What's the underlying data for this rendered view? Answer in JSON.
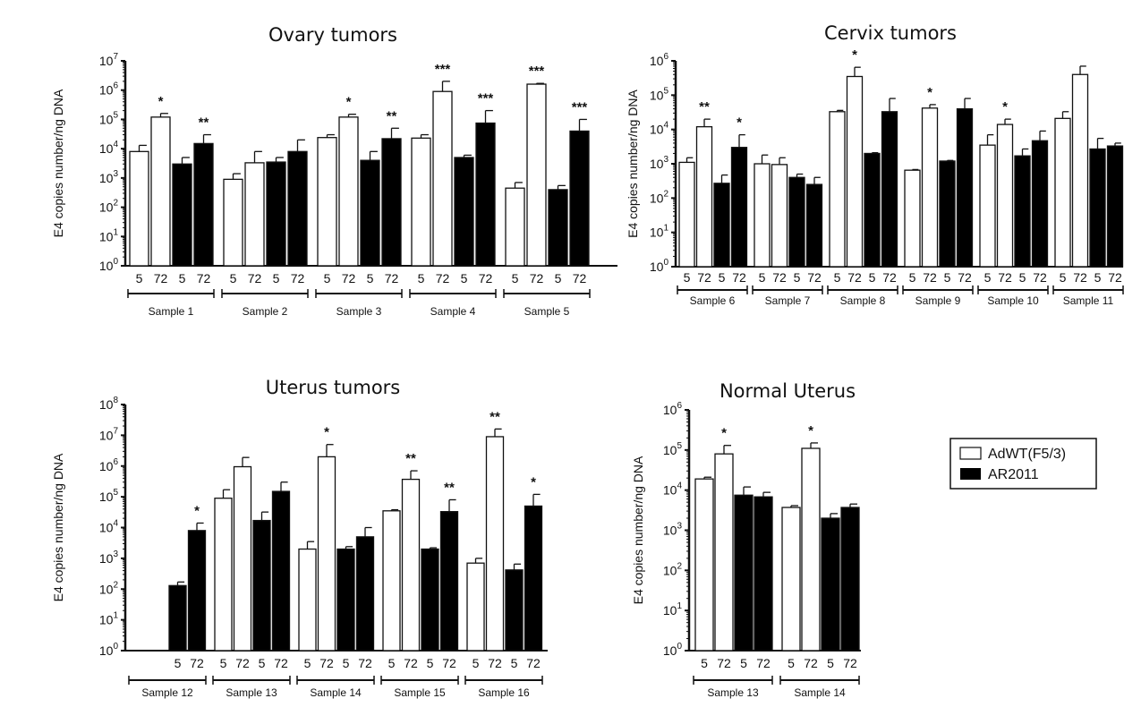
{
  "legend": {
    "items": [
      {
        "label": "AdWT(F5/3)",
        "fill": "#ffffff"
      },
      {
        "label": "AR2011",
        "fill": "#000000"
      }
    ]
  },
  "chart_data": [
    {
      "type": "bar",
      "title": "Ovary tumors",
      "ylabel": "E4 copies number/ng DNA",
      "yscale": "log",
      "ylim": [
        1,
        10000000
      ],
      "ytick_exponents": [
        0,
        1,
        2,
        3,
        4,
        5,
        6,
        7
      ],
      "groups": [
        {
          "sample": "Sample 1",
          "bars": [
            {
              "series": "AdWT(F5/3)",
              "time": "5",
              "value": 8000,
              "error_upper": 13000,
              "sig": ""
            },
            {
              "series": "AdWT(F5/3)",
              "time": "72",
              "value": 120000,
              "error_upper": 160000,
              "sig": "*"
            },
            {
              "series": "AR2011",
              "time": "5",
              "value": 3000,
              "error_upper": 5000,
              "sig": ""
            },
            {
              "series": "AR2011",
              "time": "72",
              "value": 15000,
              "error_upper": 30000,
              "sig": "**"
            }
          ]
        },
        {
          "sample": "Sample 2",
          "bars": [
            {
              "series": "AdWT(F5/3)",
              "time": "5",
              "value": 900,
              "error_upper": 1400,
              "sig": ""
            },
            {
              "series": "AdWT(F5/3)",
              "time": "72",
              "value": 3300,
              "error_upper": 8000,
              "sig": ""
            },
            {
              "series": "AR2011",
              "time": "5",
              "value": 3500,
              "error_upper": 5000,
              "sig": ""
            },
            {
              "series": "AR2011",
              "time": "72",
              "value": 8000,
              "error_upper": 20000,
              "sig": ""
            }
          ]
        },
        {
          "sample": "Sample 3",
          "bars": [
            {
              "series": "AdWT(F5/3)",
              "time": "5",
              "value": 24000,
              "error_upper": 30000,
              "sig": ""
            },
            {
              "series": "AdWT(F5/3)",
              "time": "72",
              "value": 120000,
              "error_upper": 150000,
              "sig": "*"
            },
            {
              "series": "AR2011",
              "time": "5",
              "value": 4000,
              "error_upper": 8000,
              "sig": ""
            },
            {
              "series": "AR2011",
              "time": "72",
              "value": 22000,
              "error_upper": 50000,
              "sig": "**"
            }
          ]
        },
        {
          "sample": "Sample 4",
          "bars": [
            {
              "series": "AdWT(F5/3)",
              "time": "5",
              "value": 23000,
              "error_upper": 30000,
              "sig": ""
            },
            {
              "series": "AdWT(F5/3)",
              "time": "72",
              "value": 900000,
              "error_upper": 2000000,
              "sig": "***"
            },
            {
              "series": "AR2011",
              "time": "5",
              "value": 5000,
              "error_upper": 6000,
              "sig": ""
            },
            {
              "series": "AR2011",
              "time": "72",
              "value": 75000,
              "error_upper": 200000,
              "sig": "***"
            }
          ]
        },
        {
          "sample": "Sample 5",
          "bars": [
            {
              "series": "AdWT(F5/3)",
              "time": "5",
              "value": 450,
              "error_upper": 700,
              "sig": ""
            },
            {
              "series": "AdWT(F5/3)",
              "time": "72",
              "value": 1600000,
              "error_upper": 1700000,
              "sig": "***"
            },
            {
              "series": "AR2011",
              "time": "5",
              "value": 400,
              "error_upper": 550,
              "sig": ""
            },
            {
              "series": "AR2011",
              "time": "72",
              "value": 40000,
              "error_upper": 100000,
              "sig": "***"
            }
          ]
        }
      ]
    },
    {
      "type": "bar",
      "title": "Cervix tumors",
      "ylabel": "E4 copies number/ng DNA",
      "yscale": "log",
      "ylim": [
        1,
        1000000
      ],
      "ytick_exponents": [
        0,
        1,
        2,
        3,
        4,
        5,
        6
      ],
      "groups": [
        {
          "sample": "Sample 6",
          "bars": [
            {
              "series": "AdWT(F5/3)",
              "time": "5",
              "value": 1100,
              "error_upper": 1500,
              "sig": ""
            },
            {
              "series": "AdWT(F5/3)",
              "time": "72",
              "value": 12000,
              "error_upper": 20000,
              "sig": "**"
            },
            {
              "series": "AR2011",
              "time": "5",
              "value": 270,
              "error_upper": 470,
              "sig": ""
            },
            {
              "series": "AR2011",
              "time": "72",
              "value": 3000,
              "error_upper": 7000,
              "sig": "*"
            }
          ]
        },
        {
          "sample": "Sample 7",
          "bars": [
            {
              "series": "AdWT(F5/3)",
              "time": "5",
              "value": 1000,
              "error_upper": 1800,
              "sig": ""
            },
            {
              "series": "AdWT(F5/3)",
              "time": "72",
              "value": 950,
              "error_upper": 1500,
              "sig": ""
            },
            {
              "series": "AR2011",
              "time": "5",
              "value": 400,
              "error_upper": 500,
              "sig": ""
            },
            {
              "series": "AR2011",
              "time": "72",
              "value": 250,
              "error_upper": 400,
              "sig": ""
            }
          ]
        },
        {
          "sample": "Sample 8",
          "bars": [
            {
              "series": "AdWT(F5/3)",
              "time": "5",
              "value": 33000,
              "error_upper": 36000,
              "sig": ""
            },
            {
              "series": "AdWT(F5/3)",
              "time": "72",
              "value": 350000,
              "error_upper": 650000,
              "sig": "*"
            },
            {
              "series": "AR2011",
              "time": "5",
              "value": 2000,
              "error_upper": 2100,
              "sig": ""
            },
            {
              "series": "AR2011",
              "time": "72",
              "value": 33000,
              "error_upper": 80000,
              "sig": ""
            }
          ]
        },
        {
          "sample": "Sample 9",
          "bars": [
            {
              "series": "AdWT(F5/3)",
              "time": "5",
              "value": 650,
              "error_upper": 680,
              "sig": ""
            },
            {
              "series": "AdWT(F5/3)",
              "time": "72",
              "value": 42000,
              "error_upper": 53000,
              "sig": "*"
            },
            {
              "series": "AR2011",
              "time": "5",
              "value": 1200,
              "error_upper": 1250,
              "sig": ""
            },
            {
              "series": "AR2011",
              "time": "72",
              "value": 40000,
              "error_upper": 80000,
              "sig": ""
            }
          ]
        },
        {
          "sample": "Sample 10",
          "bars": [
            {
              "series": "AdWT(F5/3)",
              "time": "5",
              "value": 3500,
              "error_upper": 7000,
              "sig": ""
            },
            {
              "series": "AdWT(F5/3)",
              "time": "72",
              "value": 14000,
              "error_upper": 20000,
              "sig": "*"
            },
            {
              "series": "AR2011",
              "time": "5",
              "value": 1700,
              "error_upper": 2700,
              "sig": ""
            },
            {
              "series": "AR2011",
              "time": "72",
              "value": 4700,
              "error_upper": 9000,
              "sig": ""
            }
          ]
        },
        {
          "sample": "Sample 11",
          "bars": [
            {
              "series": "AdWT(F5/3)",
              "time": "5",
              "value": 21000,
              "error_upper": 33000,
              "sig": ""
            },
            {
              "series": "AdWT(F5/3)",
              "time": "72",
              "value": 400000,
              "error_upper": 700000,
              "sig": ""
            },
            {
              "series": "AR2011",
              "time": "5",
              "value": 2700,
              "error_upper": 5500,
              "sig": ""
            },
            {
              "series": "AR2011",
              "time": "72",
              "value": 3300,
              "error_upper": 4000,
              "sig": ""
            }
          ]
        }
      ]
    },
    {
      "type": "bar",
      "title": "Uterus tumors",
      "ylabel": "E4 copies number/ng DNA",
      "yscale": "log",
      "ylim": [
        1,
        100000000
      ],
      "ytick_exponents": [
        0,
        1,
        2,
        3,
        4,
        5,
        6,
        7,
        8
      ],
      "groups": [
        {
          "sample": "Sample 12",
          "bars": [
            {
              "series": "AdWT(F5/3)",
              "value": null,
              "sig": ""
            },
            {
              "series": "AdWT(F5/3)",
              "value": null,
              "sig": ""
            },
            {
              "series": "AR2011",
              "time": "5",
              "value": 130,
              "error_upper": 170,
              "sig": ""
            },
            {
              "series": "AR2011",
              "time": "72",
              "value": 8000,
              "error_upper": 14000,
              "sig": "*"
            }
          ]
        },
        {
          "sample": "Sample 13",
          "bars": [
            {
              "series": "AdWT(F5/3)",
              "time": "5",
              "value": 90000,
              "error_upper": 170000,
              "sig": ""
            },
            {
              "series": "AdWT(F5/3)",
              "time": "72",
              "value": 950000,
              "error_upper": 1900000,
              "sig": ""
            },
            {
              "series": "AR2011",
              "time": "5",
              "value": 17000,
              "error_upper": 32000,
              "sig": ""
            },
            {
              "series": "AR2011",
              "time": "72",
              "value": 150000,
              "error_upper": 300000,
              "sig": ""
            }
          ]
        },
        {
          "sample": "Sample 14",
          "bars": [
            {
              "series": "AdWT(F5/3)",
              "time": "5",
              "value": 2000,
              "error_upper": 3500,
              "sig": ""
            },
            {
              "series": "AdWT(F5/3)",
              "time": "72",
              "value": 2000000,
              "error_upper": 5000000,
              "sig": "*"
            },
            {
              "series": "AR2011",
              "time": "5",
              "value": 2000,
              "error_upper": 2400,
              "sig": ""
            },
            {
              "series": "AR2011",
              "time": "72",
              "value": 5000,
              "error_upper": 10000,
              "sig": ""
            }
          ]
        },
        {
          "sample": "Sample 15",
          "bars": [
            {
              "series": "AdWT(F5/3)",
              "time": "5",
              "value": 35000,
              "error_upper": 38000,
              "sig": ""
            },
            {
              "series": "AdWT(F5/3)",
              "time": "72",
              "value": 370000,
              "error_upper": 700000,
              "sig": "**"
            },
            {
              "series": "AR2011",
              "time": "5",
              "value": 2000,
              "error_upper": 2200,
              "sig": ""
            },
            {
              "series": "AR2011",
              "time": "72",
              "value": 33000,
              "error_upper": 80000,
              "sig": "**"
            }
          ]
        },
        {
          "sample": "Sample 16",
          "bars": [
            {
              "series": "AdWT(F5/3)",
              "time": "5",
              "value": 700,
              "error_upper": 1000,
              "sig": ""
            },
            {
              "series": "AdWT(F5/3)",
              "time": "72",
              "value": 9000000,
              "error_upper": 16000000,
              "sig": "**"
            },
            {
              "series": "AR2011",
              "time": "5",
              "value": 420,
              "error_upper": 650,
              "sig": ""
            },
            {
              "series": "AR2011",
              "time": "72",
              "value": 50000,
              "error_upper": 120000,
              "sig": "*"
            }
          ]
        }
      ]
    },
    {
      "type": "bar",
      "title": "Normal Uterus",
      "ylabel": "E4 copies number/ng DNA",
      "yscale": "log",
      "ylim": [
        1,
        1000000
      ],
      "ytick_exponents": [
        0,
        1,
        2,
        3,
        4,
        5,
        6
      ],
      "groups": [
        {
          "sample": "Sample 13",
          "bars": [
            {
              "series": "AdWT(F5/3)",
              "time": "5",
              "value": 19000,
              "error_upper": 21000,
              "sig": ""
            },
            {
              "series": "AdWT(F5/3)",
              "time": "72",
              "value": 80000,
              "error_upper": 130000,
              "sig": "*"
            },
            {
              "series": "AR2011",
              "time": "5",
              "value": 7500,
              "error_upper": 12000,
              "sig": ""
            },
            {
              "series": "AR2011",
              "time": "72",
              "value": 6800,
              "error_upper": 8800,
              "sig": ""
            }
          ]
        },
        {
          "sample": "Sample 14",
          "bars": [
            {
              "series": "AdWT(F5/3)",
              "time": "5",
              "value": 3700,
              "error_upper": 4100,
              "sig": ""
            },
            {
              "series": "AdWT(F5/3)",
              "time": "72",
              "value": 110000,
              "error_upper": 150000,
              "sig": "*"
            },
            {
              "series": "AR2011",
              "time": "5",
              "value": 2000,
              "error_upper": 2600,
              "sig": ""
            },
            {
              "series": "AR2011",
              "time": "72",
              "value": 3700,
              "error_upper": 4500,
              "sig": ""
            }
          ]
        }
      ]
    }
  ]
}
